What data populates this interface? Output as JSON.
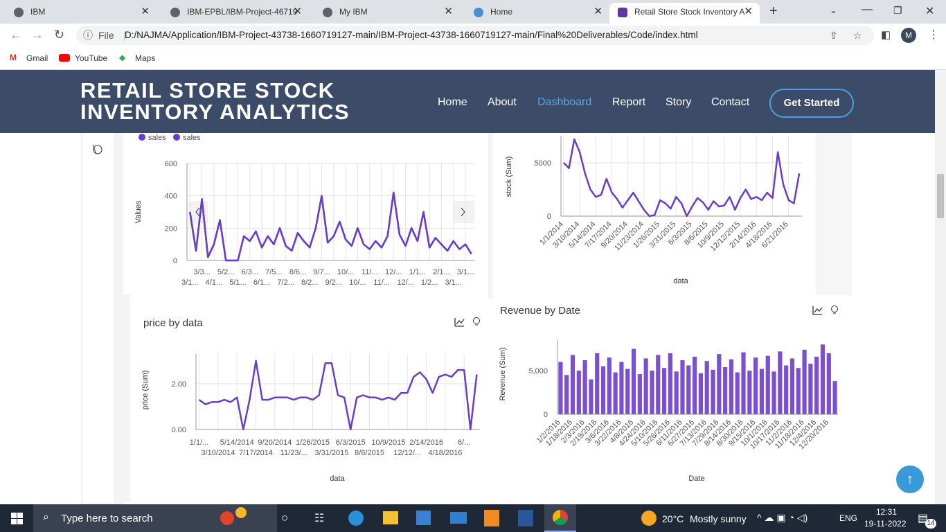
{
  "browser": {
    "tabs": [
      "IBM",
      "IBM-EPBL/IBM-Project-46719",
      "My IBM",
      "Home",
      "Retail Store Stock Inventory A"
    ],
    "address_prefix": "File",
    "url": "D:/NAJMA/Application/IBM-Project-43738-1660719127-main/IBM-Project-43738-1660719127-main/Final%20Deliverables/Code/index.html",
    "profile": "M",
    "bookmarks": [
      "Gmail",
      "YouTube",
      "Maps"
    ]
  },
  "header": {
    "title_line1": "RETAIL STORE STOCK",
    "title_line2": "INVENTORY ANALYTICS",
    "nav": [
      "Home",
      "About",
      "Dashboard",
      "Report",
      "Story",
      "Contact"
    ],
    "button": "Get Started"
  },
  "chart_data": [
    {
      "type": "line",
      "ylabel": "Values",
      "ylim": [
        0,
        600
      ],
      "yticks": [
        0,
        200,
        400,
        600
      ],
      "grid": true,
      "categories": [
        "3/1...",
        null,
        "3/3...",
        null,
        "4/1...",
        null,
        "5/2...",
        null,
        "5/1...",
        null,
        "6/3...",
        null,
        "6/1...",
        null,
        "7/5...",
        null,
        "7/2...",
        null,
        "8/6...",
        null,
        "8/2...",
        null,
        "9/7...",
        null,
        "9/2...",
        null,
        "10/...",
        null,
        "10/...",
        null,
        "11/...",
        null,
        "11/...",
        null,
        "12/...",
        null,
        "12/...",
        null,
        "1/1...",
        null,
        "1/2...",
        null,
        "2/1...",
        null,
        "3/1...",
        null,
        "3/1...",
        null
      ],
      "series": [
        {
          "name": "sales",
          "color": "#6a3cc8",
          "values": [
            300,
            60,
            380,
            20,
            100,
            250,
            0,
            0,
            0,
            150,
            120,
            180,
            80,
            150,
            100,
            200,
            90,
            60,
            170,
            120,
            80,
            200,
            400,
            110,
            150,
            240,
            130,
            90,
            200,
            100,
            70,
            120,
            80,
            150,
            420,
            160,
            90,
            200,
            120,
            300,
            80,
            140,
            100,
            60,
            120,
            70,
            100,
            40
          ]
        },
        {
          "name": "sales",
          "color": "#6a3cc8",
          "values": [
            300,
            60,
            380,
            20,
            100,
            250,
            0,
            0,
            0,
            150,
            120,
            180,
            80,
            150,
            100,
            200,
            90,
            60,
            170,
            120,
            80,
            200,
            400,
            110,
            150,
            240,
            130,
            90,
            200,
            100,
            70,
            120,
            80,
            150,
            420,
            160,
            90,
            200,
            120,
            300,
            80,
            140,
            100,
            60,
            120,
            70,
            100,
            40
          ]
        }
      ]
    },
    {
      "type": "line",
      "ylabel": "stock (Sum)",
      "xlabel": "data",
      "ylim": [
        0,
        7500
      ],
      "yticks": [
        0,
        5000
      ],
      "grid": true,
      "color": "#6a3cc8",
      "categories": [
        "1/1/2014",
        null,
        null,
        "3/10/2014",
        null,
        null,
        "5/14/2014",
        null,
        null,
        "7/17/2014",
        null,
        null,
        "9/20/2014",
        null,
        null,
        "11/23/2014",
        null,
        null,
        "1/26/2015",
        null,
        null,
        "3/31/2015",
        null,
        null,
        "6/3/2015",
        null,
        null,
        "8/6/2015",
        null,
        null,
        "10/9/2015",
        null,
        null,
        "12/12/2015",
        null,
        null,
        "2/14/2016",
        null,
        null,
        "4/18/2016",
        null,
        null,
        "6/21/2016",
        null,
        null
      ],
      "values": [
        5000,
        4500,
        7200,
        6000,
        4000,
        2500,
        1800,
        2000,
        3500,
        2200,
        1600,
        800,
        1500,
        2200,
        1400,
        600,
        0,
        100,
        1500,
        1200,
        700,
        1800,
        1200,
        0,
        900,
        1700,
        1300,
        600,
        1400,
        900,
        1000,
        1800,
        600,
        1700,
        2500,
        1600,
        1800,
        1500,
        2200,
        1700,
        6000,
        3000,
        1500,
        1200,
        4000
      ]
    },
    {
      "type": "line",
      "title": "price by data",
      "ylabel": "price (Sum)",
      "xlabel": "data",
      "ylim": [
        0,
        3.3
      ],
      "yticks": [
        {
          "value": 0,
          "label": "0.00"
        },
        {
          "value": 2,
          "label": "2.00"
        }
      ],
      "grid": true,
      "color": "#6a3cc8",
      "categories": [
        "1/1/...",
        null,
        null,
        "3/10/2014",
        null,
        null,
        "5/14/2014",
        null,
        null,
        "7/17/2014",
        null,
        null,
        "9/20/2014",
        null,
        null,
        "11/23/...",
        null,
        null,
        "1/26/2015",
        null,
        null,
        "3/31/2015",
        null,
        null,
        "6/3/2015",
        null,
        null,
        "8/6/2015",
        null,
        null,
        "10/9/2015",
        null,
        null,
        "12/12/...",
        null,
        null,
        "2/14/2016",
        null,
        null,
        "4/18/2016",
        null,
        null,
        "6/...",
        null,
        null
      ],
      "values": [
        1.3,
        1.1,
        1.2,
        1.2,
        1.3,
        1.2,
        1.4,
        0,
        1.3,
        3.0,
        1.3,
        1.3,
        1.4,
        1.4,
        1.4,
        1.3,
        1.4,
        1.4,
        1.3,
        1.5,
        2.9,
        2.9,
        1.5,
        1.4,
        0,
        1.4,
        1.5,
        1.4,
        1.4,
        1.3,
        1.4,
        1.3,
        1.6,
        1.6,
        2.3,
        2.5,
        2.2,
        1.6,
        2.3,
        2.4,
        2.3,
        2.6,
        2.6,
        0,
        2.4
      ]
    },
    {
      "type": "bar",
      "title": "Revenue by Date",
      "ylabel": "Revenue (Sum)",
      "xlabel": "Date",
      "ylim": [
        0,
        8500
      ],
      "yticks": [
        0,
        {
          "value": 5000,
          "label": "5,000"
        }
      ],
      "grid": false,
      "color": "#7b4fd1",
      "categories": [
        "1/2/2016",
        null,
        "1/18/2016",
        null,
        "2/3/2016",
        null,
        "2/19/2016",
        null,
        "3/6/2016",
        null,
        "3/22/2016",
        null,
        "4/8/2016",
        null,
        "4/24/2016",
        null,
        "5/10/2016",
        null,
        "5/26/2016",
        null,
        "6/11/2016",
        null,
        "6/27/2016",
        null,
        "7/13/2016",
        null,
        "7/29/2016",
        null,
        "8/14/2016",
        null,
        "8/30/2016",
        null,
        "9/15/2016",
        null,
        "10/1/2016",
        null,
        "10/17/2016",
        null,
        "11/2/2016",
        null,
        "11/18/2016",
        null,
        "12/4/2016",
        null,
        "12/20/2016",
        null
      ],
      "values": [
        6000,
        4500,
        6800,
        5000,
        6200,
        4000,
        7000,
        5500,
        6500,
        4800,
        6000,
        5200,
        7500,
        4600,
        6400,
        5000,
        6800,
        5300,
        7000,
        4900,
        6200,
        5600,
        6600,
        4700,
        6100,
        5100,
        6900,
        5400,
        6300,
        4800,
        7100,
        5000,
        6500,
        5200,
        6700,
        4900,
        7200,
        5600,
        6400,
        5300,
        7400,
        5800,
        6600,
        8000,
        7000,
        3800
      ]
    }
  ],
  "taskbar": {
    "search": "Type here to search",
    "temperature": "20°C",
    "weather": "Mostly sunny",
    "language": "ENG",
    "time": "12:31",
    "date": "19-11-2022",
    "notifications": "14"
  }
}
